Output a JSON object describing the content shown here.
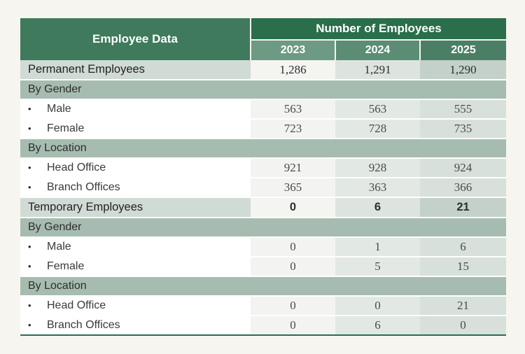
{
  "header": {
    "row_label": "Employee Data",
    "group_label": "Number of Employees",
    "years": [
      "2023",
      "2024",
      "2025"
    ]
  },
  "rows": {
    "permanent": {
      "label": "Permanent Employees",
      "values": [
        "1,286",
        "1,291",
        "1,290"
      ]
    },
    "perm_gender": {
      "label": "By Gender"
    },
    "perm_male": {
      "label": "Male",
      "values": [
        "563",
        "563",
        "555"
      ]
    },
    "perm_female": {
      "label": "Female",
      "values": [
        "723",
        "728",
        "735"
      ]
    },
    "perm_location": {
      "label": "By Location"
    },
    "perm_head": {
      "label": "Head Office",
      "values": [
        "921",
        "928",
        "924"
      ]
    },
    "perm_branch": {
      "label": "Branch Offices",
      "values": [
        "365",
        "363",
        "366"
      ]
    },
    "temporary": {
      "label": "Temporary Employees",
      "values": [
        "0",
        "6",
        "21"
      ]
    },
    "temp_gender": {
      "label": "By Gender"
    },
    "temp_male": {
      "label": "Male",
      "values": [
        "0",
        "1",
        "6"
      ]
    },
    "temp_female": {
      "label": "Female",
      "values": [
        "0",
        "5",
        "15"
      ]
    },
    "temp_location": {
      "label": "By Location"
    },
    "temp_head": {
      "label": "Head Office",
      "values": [
        "0",
        "0",
        "21"
      ]
    },
    "temp_branch": {
      "label": "Branch Offices",
      "values": [
        "0",
        "6",
        "0"
      ]
    }
  }
}
